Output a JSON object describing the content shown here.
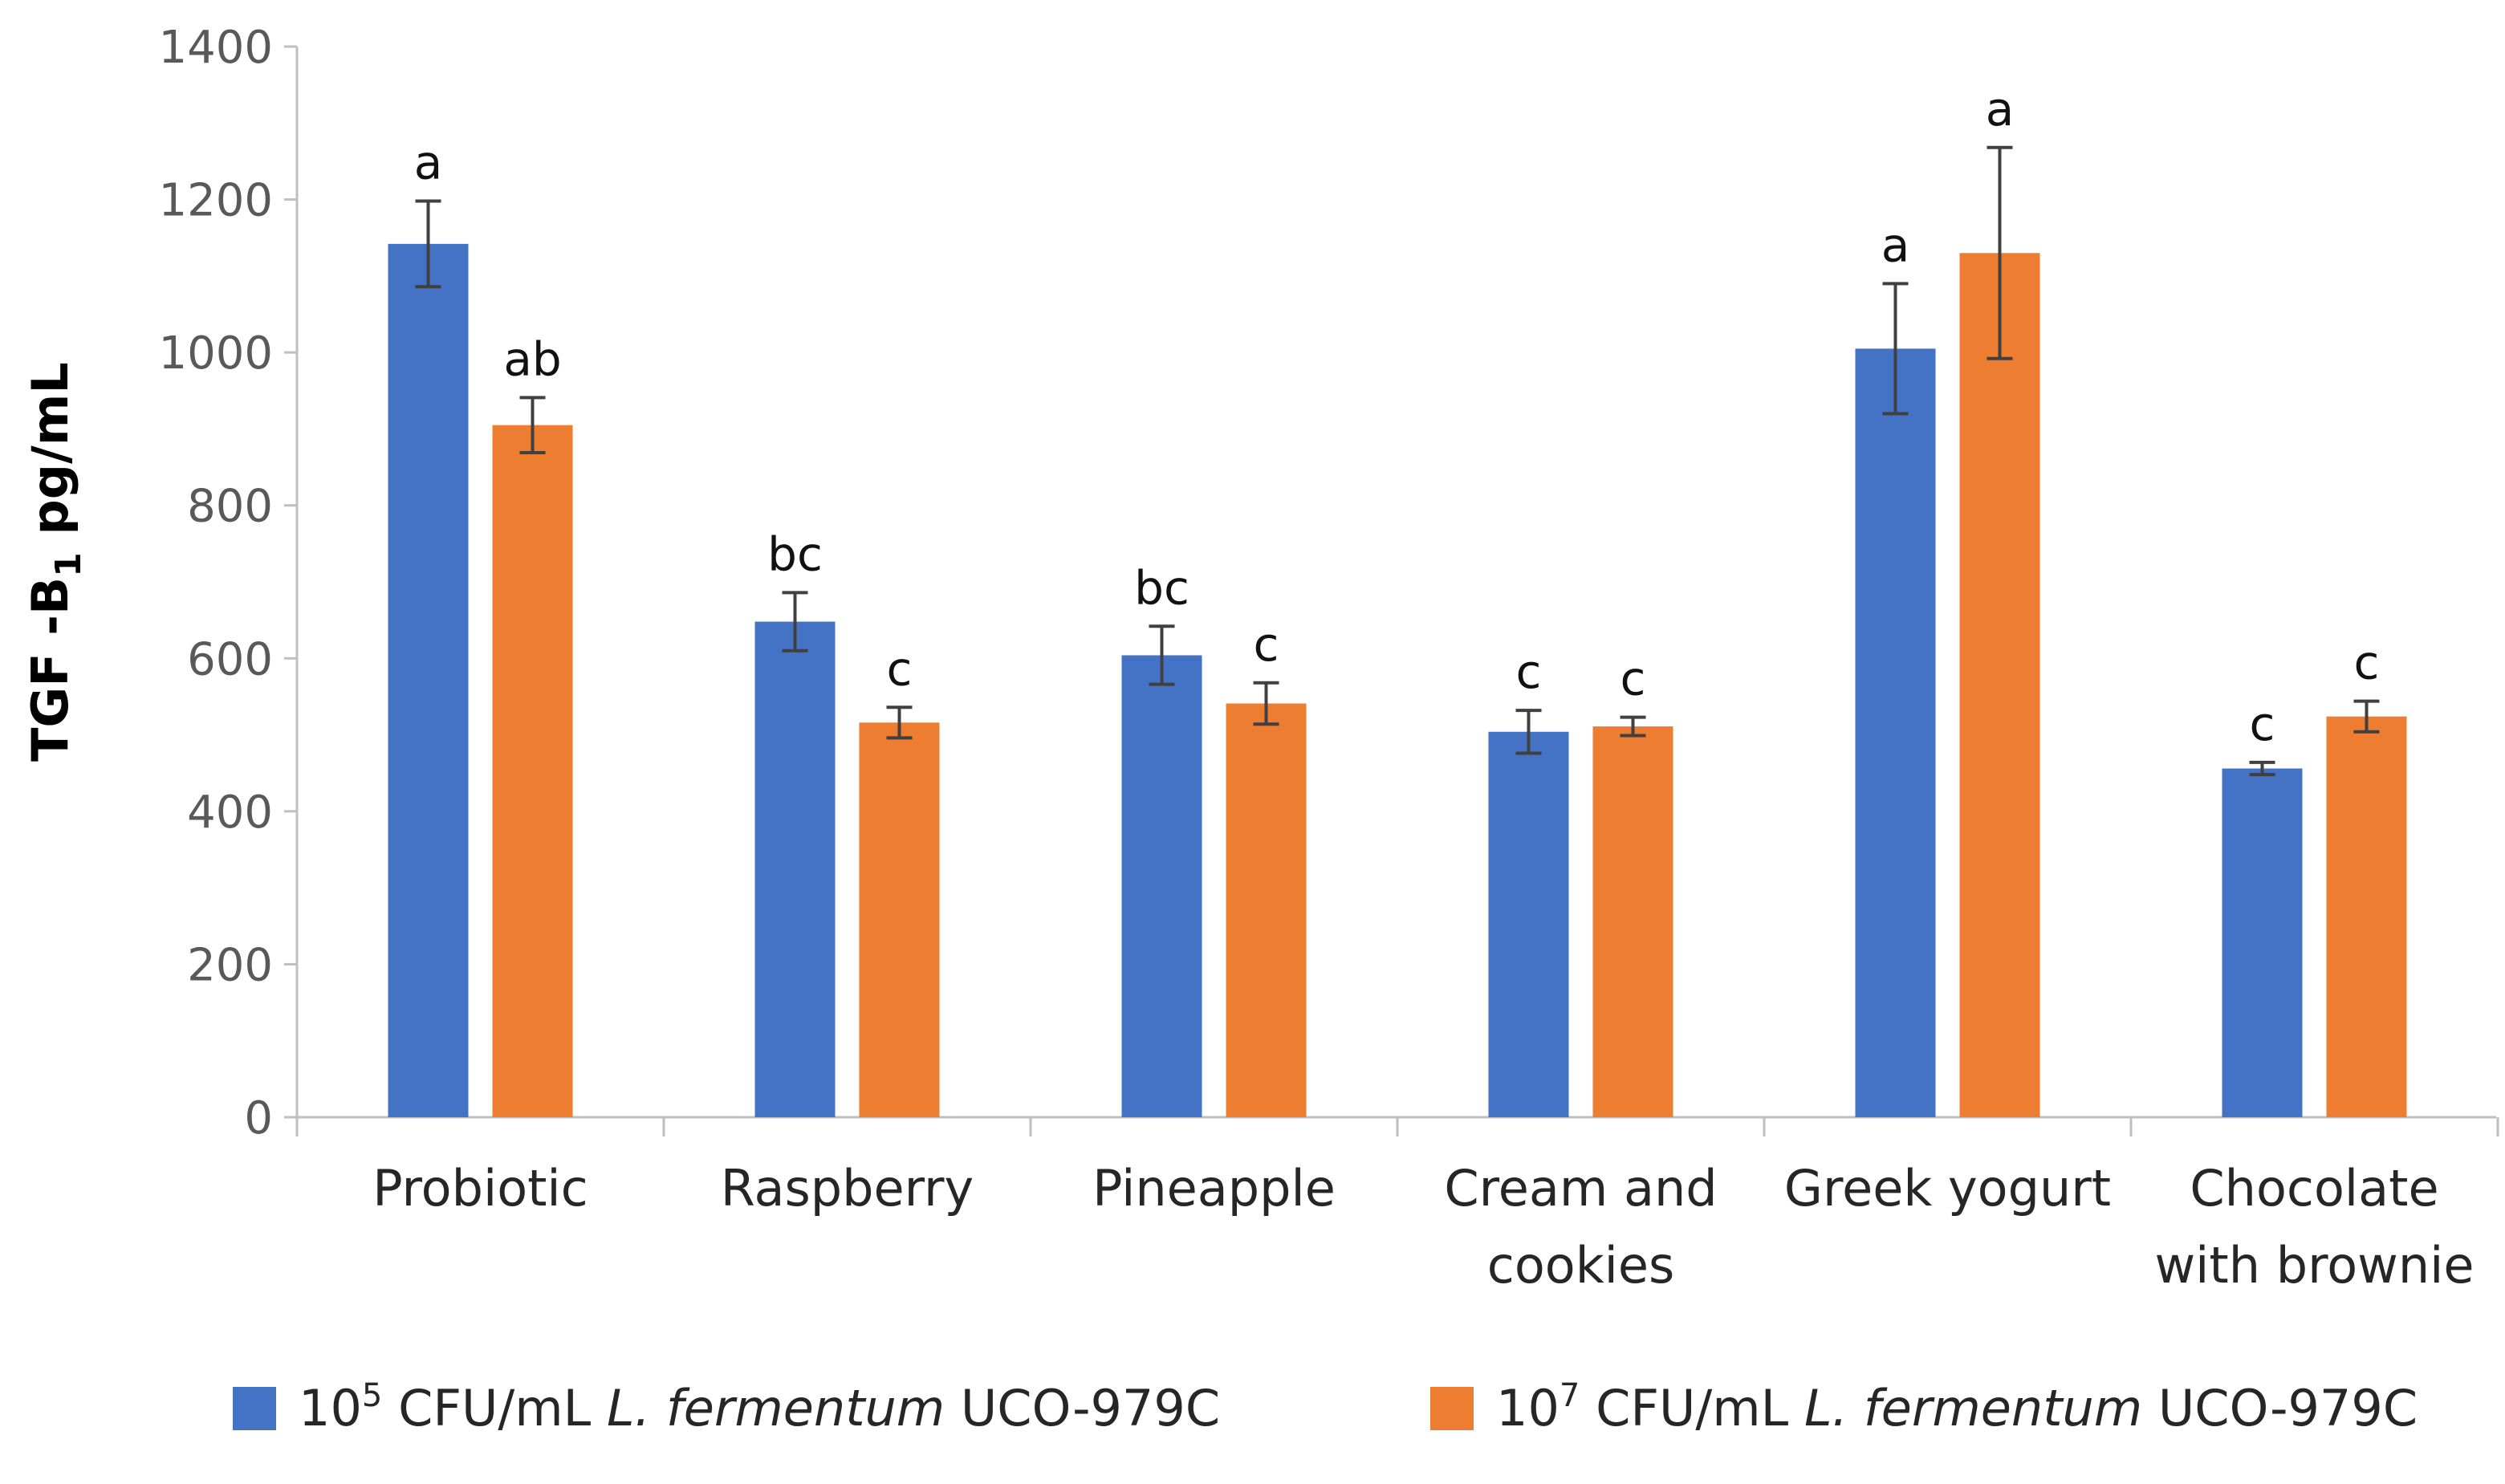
{
  "chart_data": {
    "type": "bar",
    "title": "",
    "xlabel": "",
    "ylabel": {
      "main": "TGF -B",
      "subscript": "1",
      "unit": " pg/mL"
    },
    "ylim": [
      0,
      1400
    ],
    "yticks": [
      0,
      200,
      400,
      600,
      800,
      1000,
      1200,
      1400
    ],
    "grid": false,
    "legend_position": "bottom",
    "categories": [
      [
        "Probiotic"
      ],
      [
        "Raspberry"
      ],
      [
        "Pineapple"
      ],
      [
        "Cream and",
        "cookies"
      ],
      [
        "Greek yogurt"
      ],
      [
        "Chocolate",
        "with brownie"
      ]
    ],
    "series": [
      {
        "legend": {
          "base": "10",
          "exponent": "5",
          "unit": " CFU/mL ",
          "species": "L. fermentum",
          "strain": " UCO-979C"
        },
        "color": "#4472C4",
        "values": [
          1142,
          648,
          604,
          504,
          1005,
          456
        ],
        "errors": [
          56,
          38,
          38,
          28,
          85,
          8
        ],
        "significance": [
          "a",
          "bc",
          "bc",
          "c",
          "a",
          "c"
        ]
      },
      {
        "legend": {
          "base": "10",
          "exponent": "7",
          "unit": " CFU/mL ",
          "species": "L. fermentum",
          "strain": " UCO-979C"
        },
        "color": "#ED7D31",
        "values": [
          905,
          516,
          541,
          511,
          1130,
          524
        ],
        "errors": [
          36,
          20,
          27,
          12,
          138,
          20
        ],
        "significance": [
          "ab",
          "c",
          "c",
          "c",
          "a",
          "c"
        ]
      }
    ],
    "error_bar_color": "#404040",
    "axis_color": "#BFBFBF"
  }
}
